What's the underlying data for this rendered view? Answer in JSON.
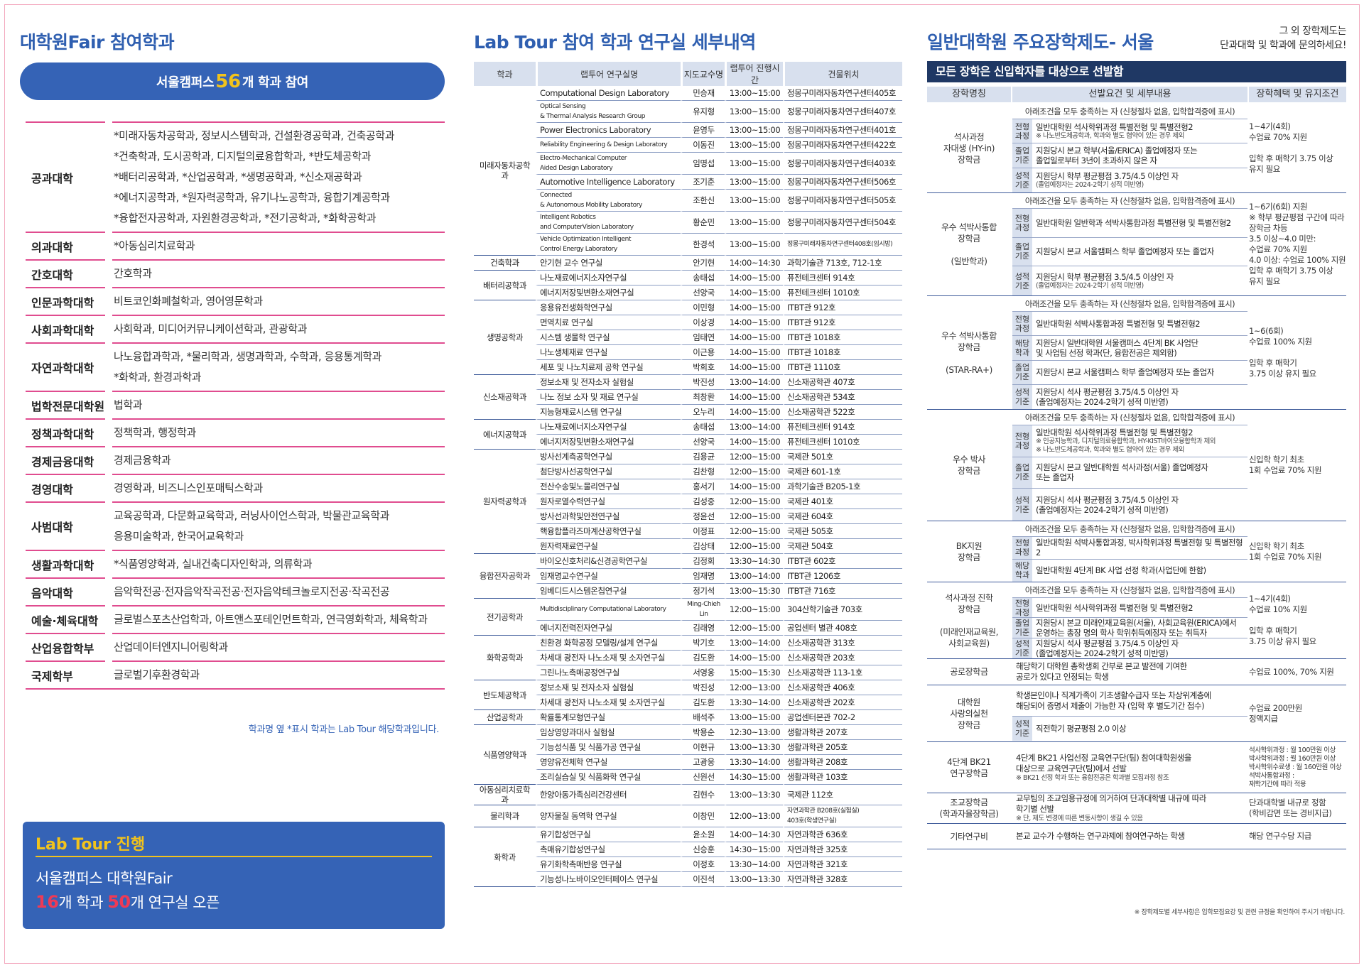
{
  "col1": {
    "title": "대학원Fair 참여학과",
    "pill": {
      "prefix": "서울캠퍼스 ",
      "number": "56",
      "suffix": "개 학과 참여"
    },
    "rows": [
      {
        "college": "공과대학",
        "depts": [
          "*미래자동차공학과, 정보시스템학과, 건설환경공학과, 건축공학과",
          "*건축학과, 도시공학과, 디지털의료융합학과, *반도체공학과",
          "*배터리공학과, *산업공학과, *생명공학과, *신소재공학과",
          "*에너지공학과, *원자력공학과, 유기나노공학과, 융합기계공학과",
          "*융합전자공학과, 자원환경공학과, *전기공학과, *화학공학과"
        ]
      },
      {
        "college": "의과대학",
        "depts": [
          "*아동심리치료학과"
        ]
      },
      {
        "college": "간호대학",
        "depts": [
          "간호학과"
        ]
      },
      {
        "college": "인문과학대학",
        "depts": [
          "비트코인화폐철학과, 영어영문학과"
        ]
      },
      {
        "college": "사회과학대학",
        "depts": [
          "사회학과, 미디어커뮤니케이션학과, 관광학과"
        ]
      },
      {
        "college": "자연과학대학",
        "depts": [
          "나노융합과학과, *물리학과, 생명과학과, 수학과, 응용통계학과",
          "*화학과, 환경과학과"
        ]
      },
      {
        "college": "법학전문대학원",
        "depts": [
          "법학과"
        ]
      },
      {
        "college": "정책과학대학",
        "depts": [
          "정책학과, 행정학과"
        ]
      },
      {
        "college": "경제금융대학",
        "depts": [
          "경제금융학과"
        ]
      },
      {
        "college": "경영대학",
        "depts": [
          "경영학과, 비즈니스인포매틱스학과"
        ]
      },
      {
        "college": "사범대학",
        "depts": [
          "교육공학과, 다문화교육학과, 러닝사이언스학과, 박물관교육학과",
          "응용미술학과, 한국어교육학과"
        ]
      },
      {
        "college": "생활과학대학",
        "depts": [
          "*식품영양학과, 실내건축디자인학과, 의류학과"
        ]
      },
      {
        "college": "음악대학",
        "depts": [
          "음악학전공·전자음악작곡전공·전자음악테크놀로지전공·작곡전공"
        ]
      },
      {
        "college": "예술·체육대학",
        "depts": [
          "글로벌스포츠산업학과, 아트앤스포테인먼트학과, 연극영화학과, 체육학과"
        ]
      },
      {
        "college": "산업융합학부",
        "depts": [
          "산업데이터엔지니어링학과"
        ]
      },
      {
        "college": "국제학부",
        "depts": [
          "글로벌기후환경학과"
        ]
      }
    ],
    "note": "학과명 옆 *표시 학과는 Lab Tour 해당학과입니다.",
    "labtour": {
      "title": "Lab Tour 진행",
      "line1": "서울캠퍼스 대학원Fair",
      "n1": "16",
      "t1": "개 학과 ",
      "n2": "50",
      "t2": "개 연구실 오픈"
    }
  },
  "col2": {
    "title": "Lab Tour 참여  학과 연구실 세부내역",
    "headers": [
      "학과",
      "랩투어 연구실명",
      "지도교수명",
      "랩투어 진행시간",
      "건물위치"
    ],
    "groups": [
      {
        "dept": "미래자동차공학과",
        "rows": [
          [
            "Computational Design Laboratory",
            "민승재",
            "13:00~15:00",
            "정몽구미래자동차연구센터405호"
          ],
          [
            "Optical Sensing\n& Thermal Analysis Research Group",
            "유지형",
            "13:00~15:00",
            "정몽구미래자동차연구센터407호"
          ],
          [
            "Power Electronics Laboratory",
            "윤영두",
            "13:00~15:00",
            "정몽구미래자동차연구센터401호"
          ],
          [
            "Reliability Engineering & Design Laboratory",
            "이동진",
            "13:00~15:00",
            "정몽구미래자동차연구센터422호"
          ],
          [
            "Electro-Mechanical Computer\nAided Design Laboratory",
            "임명섭",
            "13:00~15:00",
            "정몽구미래자동차연구센터403호"
          ],
          [
            "Automotive Intelligence Laboratory",
            "조기춘",
            "13:00~15:00",
            "정몽구미래자동차연구센터506호"
          ],
          [
            "Connected\n& Autonomous Mobility Laboratory",
            "조한신",
            "13:00~15:00",
            "정몽구미래자동차연구센터505호"
          ],
          [
            "Intelligent Robotics\nand ComputerVision Laboratory",
            "황순민",
            "13:00~15:00",
            "정몽구미래자동차연구센터504호"
          ],
          [
            "Vehicle Optimization Intelligent\nControl Energy Laboratory",
            "한경석",
            "13:00~15:00",
            "정몽구미래자동차연구센터408호(임시방)"
          ]
        ]
      },
      {
        "dept": "건축학과",
        "rows": [
          [
            "안기현 교수 연구실",
            "안기현",
            "14:00~14:30",
            "과학기술관 713호, 712-1호"
          ]
        ]
      },
      {
        "dept": "배터리공학과",
        "rows": [
          [
            "나노재료에너지소자연구실",
            "송태섭",
            "14:00~15:00",
            "퓨전테크센터 914호"
          ],
          [
            "에너지저장및변환소재연구실",
            "선양국",
            "14:00~15:00",
            "퓨전테크센터 1010호"
          ]
        ]
      },
      {
        "dept": "생명공학과",
        "rows": [
          [
            "응용유전생화학연구실",
            "이민형",
            "14:00~15:00",
            "ITBT관 912호"
          ],
          [
            "면역치료 연구실",
            "이상경",
            "14:00~15:00",
            "ITBT관 912호"
          ],
          [
            "시스템 생물학 연구실",
            "임태연",
            "14:00~15:00",
            "ITBT관 1018호"
          ],
          [
            "나노생체재료 연구실",
            "이근용",
            "14:00~15:00",
            "ITBT관 1018호"
          ],
          [
            "세포 및 나노치료제 공학 연구실",
            "박희호",
            "14:00~15:00",
            "ITBT관 1110호"
          ]
        ]
      },
      {
        "dept": "신소재공학과",
        "rows": [
          [
            "정보소재 및 전자소자 실험실",
            "박진성",
            "13:00~14:00",
            "신소재공학관 407호"
          ],
          [
            "나노 정보 소자 및 재료 연구실",
            "최창환",
            "14:00~15:00",
            "신소재공학관 534호"
          ],
          [
            "지능형재료시스템 연구실",
            "오누리",
            "14:00~15:00",
            "신소재공학관 522호"
          ]
        ]
      },
      {
        "dept": "에너지공학과",
        "rows": [
          [
            "나노재료에너지소자연구실",
            "송태섭",
            "13:00~14:00",
            "퓨전테크센터 914호"
          ],
          [
            "에너지저장및변환소재연구실",
            "선양국",
            "14:00~15:00",
            "퓨전테크센터 1010호"
          ]
        ]
      },
      {
        "dept": "원자력공학과",
        "rows": [
          [
            "방사선계측공학연구실",
            "김용균",
            "12:00~15:00",
            "국제관 501호"
          ],
          [
            "첨단방사선공학연구실",
            "김찬형",
            "12:00~15:00",
            "국제관 601-1호"
          ],
          [
            "전산수송및노물리연구실",
            "홍서기",
            "14:00~15:00",
            "과학기술관 B205-1호"
          ],
          [
            "원자로열수력연구실",
            "김성중",
            "12:00~15:00",
            "국제관 401호"
          ],
          [
            "방사선과학및안전연구실",
            "정윤선",
            "12:00~15:00",
            "국제관 604호"
          ],
          [
            "핵융합플라즈마계산공학연구실",
            "이정표",
            "12:00~15:00",
            "국제관 505호"
          ],
          [
            "원자력재료연구실",
            "김상태",
            "12:00~15:00",
            "국제관 504호"
          ]
        ]
      },
      {
        "dept": "융합전자공학과",
        "rows": [
          [
            "바이오신호처리&신경공학연구실",
            "김정회",
            "13:30~14:30",
            "ITBT관 602호"
          ],
          [
            "임재명교수연구실",
            "임재명",
            "13:00~14:00",
            "ITBT관 1206호"
          ],
          [
            "임베디드시스템온칩연구실",
            "정기석",
            "13:00~15:30",
            "ITBT관 716호"
          ]
        ]
      },
      {
        "dept": "전기공학과",
        "rows": [
          [
            "Multidisciplinary Computational Laboratory",
            "Ming-Chieh\nLin",
            "12:00~15:00",
            "304산학기술관 703호"
          ],
          [
            "에너지전력전자연구실",
            "김래영",
            "12:00~15:00",
            "공업센터 별관 408호"
          ]
        ]
      },
      {
        "dept": "화학공학과",
        "rows": [
          [
            "친환경 화학공정 모델링/설계 연구실",
            "박기호",
            "13:00~14:00",
            "신소재공학관 313호"
          ],
          [
            "차세대 광전자 나노소재 및 소자연구실",
            "김도환",
            "14:00~15:00",
            "신소재공학관 203호"
          ],
          [
            "그린나노촉매공정연구실",
            "서영웅",
            "15:00~15:30",
            "신소재공학관 113-1호"
          ]
        ]
      },
      {
        "dept": "반도체공학과",
        "rows": [
          [
            "정보소재 및 전자소자 실험실",
            "박진성",
            "12:00~13:00",
            "신소재공학관 406호"
          ],
          [
            "차세대 광전자 나노소재 및 소자연구실",
            "김도환",
            "13:30~14:00",
            "신소재공학관 202호"
          ]
        ]
      },
      {
        "dept": "산업공학과",
        "rows": [
          [
            "확률통계모형연구실",
            "배석주",
            "13:00~15:00",
            "공업센터본관 702-2"
          ]
        ]
      },
      {
        "dept": "식품영양학과",
        "rows": [
          [
            "임상영양과대사 실험실",
            "박용순",
            "12:30~13:00",
            "생활과학관 207호"
          ],
          [
            "기능성식품 및 식품가공 연구실",
            "이현규",
            "13:00~13:30",
            "생활과학관 205호"
          ],
          [
            "영양유전체학 연구실",
            "고광웅",
            "13:30~14:00",
            "생활과학관 208호"
          ],
          [
            "조리실습실 및 식품화학 연구실",
            "신원선",
            "14:30~15:00",
            "생활과학관 103호"
          ]
        ]
      },
      {
        "dept": "아동심리치료학과",
        "rows": [
          [
            "한양아동가족심리건강센터",
            "김현수",
            "13:00~13:30",
            "국제관 112호"
          ]
        ]
      },
      {
        "dept": "물리학과",
        "rows": [
          [
            "양자물질 동역학 연구실",
            "이창민",
            "12:00~13:00",
            "자연과학관 B208호(실험실)\n403호(학생연구실)"
          ]
        ]
      },
      {
        "dept": "화학과",
        "rows": [
          [
            "유기합성연구실",
            "윤소원",
            "14:00~14:30",
            "자연과학관 636호"
          ],
          [
            "촉매유기합성연구실",
            "신승훈",
            "14:30~15:00",
            "자연과학관 325호"
          ],
          [
            "유기화학촉매반응 연구실",
            "이정호",
            "13:30~14:00",
            "자연과학관 321호"
          ],
          [
            "기능성나노바이오인터페이스 연구실",
            "이진석",
            "13:00~13:30",
            "자연과학관 328호"
          ]
        ]
      }
    ]
  },
  "col3": {
    "title": "일반대학원 주요장학제도- 서울",
    "side_note": [
      "그 외 장학제도는",
      "단과대학 및 학과에 문의하세요!"
    ],
    "banner": "모든 장학은 신입학자를 대상으로 선발함",
    "headers": [
      "장학명칭",
      "선발요건 및 세부내용",
      "장학혜택 및 유지조건"
    ],
    "blocks": [
      {
        "name": "석사과정\n자대생 (HY-in)\n장학금",
        "cond": "아래조건을 모두 충족하는 자 (신청절차 없음, 입학합격증에 표시)",
        "reqs": [
          {
            "k": "전형\n과정",
            "v": "일반대학원 석사학위과정 특별전형 및 특별전형2",
            "s": "※ 나노반도체공학과, 학과와 별도 협약이 있는 경우 제외"
          },
          {
            "k": "졸업\n기준",
            "v": "지원당시 본교 학부(서울/ERICA) 졸업예정자 또는\n졸업일로부터 3년이 초과하지 않은 자",
            "s": ""
          },
          {
            "k": "성적\n기준",
            "v": "지원당시 학부 평균평점 3.75/4.5 이상인 자",
            "s": "(졸업예정자는 2024-2학기 성적 미반영)"
          }
        ],
        "benefit": "1~4기(4회)\n수업료 70% 지원\n\n입학 후 매학기 3.75 이상\n유지 필요"
      },
      {
        "name": "우수 석박사통합\n장학금\n\n(일반학과)",
        "cond": "아래조건을 모두 충족하는 자 (신청절차 없음, 입학합격증에 표시)",
        "reqs": [
          {
            "k": "전형\n과정",
            "v": "일반대학원 일반학과 석박사통합과정 특별전형 및 특별전형2",
            "s": ""
          },
          {
            "k": "졸업\n기준",
            "v": "지원당시 본교 서울캠퍼스 학부 졸업예정자 또는 졸업자",
            "s": ""
          },
          {
            "k": "성적\n기준",
            "v": "지원당시 학부 평균평점 3.5/4.5 이상인 자",
            "s": "(졸업예정자는 2024-2학기 성적 미반영)"
          }
        ],
        "benefit": "1~6기(6회) 지원\n※ 학부 평균평점 구간에 따라\n  장학금 차등\n3.5 이상~4.0 미만:\n수업료 70% 지원\n4.0 이상: 수업료 100% 지원\n입학 후 매학기 3.75 이상\n유지 필요"
      },
      {
        "name": "우수 석박사통합\n장학금\n\n(STAR-RA+)",
        "cond": "아래조건을 모두 충족하는 자 (신청절차 없음, 입학합격증에 표시)",
        "reqs": [
          {
            "k": "전형\n과정",
            "v": "일반대학원 석박사통합과정 특별전형 및 특별전형2",
            "s": ""
          },
          {
            "k": "해당\n학과",
            "v": "지원당시 일반대학원 서울캠퍼스 4단계 BK 사업단\n및 사업팀 선정 학과(단, 융합전공은 제외함)",
            "s": ""
          },
          {
            "k": "졸업\n기준",
            "v": "지원당시 본교 서울캠퍼스 학부 졸업예정자 또는 졸업자",
            "s": ""
          },
          {
            "k": "성적\n기준",
            "v": "지원당시 석사 평균평점 3.75/4.5 이상인 자\n(졸업예정자는 2024-2학기 성적 미반영)",
            "s": ""
          }
        ],
        "benefit": "1~6(6회)\n수업료 100% 지원\n\n입학 후 매학기\n3.75 이상 유지 필요"
      },
      {
        "name": "우수 박사\n장학금",
        "cond": "아래조건을 모두 충족하는 자 (신청절차 없음, 입학합격증에 표시)",
        "reqs": [
          {
            "k": "전형\n과정",
            "v": "일반대학원 석사학위과정 특별전형 및 특별전형2",
            "s": "※ 인공지능학과, 디지털의료융합학과, HY-KIST바이오융합학과 제외\n※ 나노반도체공학과, 학과와 별도 협약이 있는 경우 제외"
          },
          {
            "k": "졸업\n기준",
            "v": "지원당시 본교 일반대학원 석사과정(서울) 졸업예정자\n또는 졸업자",
            "s": ""
          },
          {
            "k": "성적\n기준",
            "v": "지원당시 석사 평균평점 3.75/4.5 이상인 자\n(졸업예정자는 2024-2학기 성적 미반영)",
            "s": ""
          }
        ],
        "benefit": "신입학 학기 최초\n1회 수업료 70% 지원"
      },
      {
        "name": "BK지원\n장학금",
        "cond": "아래조건을 모두 충족하는 자 (신청절차 없음, 입학합격증에 표시)",
        "reqs": [
          {
            "k": "전형\n과정",
            "v": "일반대학원 석박사통합과정, 박사학위과정 특별전형 및 특별전형2",
            "s": ""
          },
          {
            "k": "해당\n학과",
            "v": "일반대학원 4단계 BK 사업 선정 학과(사업단에 한함)",
            "s": ""
          }
        ],
        "benefit": "신입학 학기 최초\n1회 수업료 70% 지원"
      },
      {
        "name": "석사과정 진학\n장학금\n\n(미래인재교육원,\n사회교육원)",
        "cond": "아래조건을 모두 충족하는 자 (신청절차 없음, 입학합격증에 표시)",
        "reqs": [
          {
            "k": "전형\n과정",
            "v": "일반대학원 석사학위과정 특별전형 및 특별전형2",
            "s": ""
          },
          {
            "k": "졸업\n기준",
            "v": "지원당시 본교 미래인재교육원(서울), 사회교육원(ERICA)에서\n운영하는 총장 명의 학사 학위취득예정자 또는 취득자",
            "s": ""
          },
          {
            "k": "성적\n기준",
            "v": "지원당시 석사 평균평점 3.75/4.5 이상인 자\n(졸업예정자는 2024-2학기 성적 미반영)",
            "s": ""
          }
        ],
        "benefit": "1~4기(4회)\n수업료 10% 지원\n\n입학 후 매학기\n3.75 이상 유지 필요"
      }
    ],
    "plain": [
      {
        "name": "공로장학금",
        "v": "해당학기 대학원 총학생회 간부로 본교 발전에 기여한\n공로가 있다고 인정되는 학생",
        "s": "",
        "benefit": "수업료 100%, 70% 지원"
      },
      {
        "name": "대학원\n사랑의실천\n장학금",
        "v": "학생본인이나 직계가족이 기초생활수급자 또는 차상위계층에\n해당되어 증명서 제출이 가능한 자 (입학 후 별도기간 접수)",
        "k2": "성적\n기준",
        "v2": "직전학기 평균평점 2.0 이상",
        "benefit": "수업료 200만원\n정액지급"
      },
      {
        "name": "4단계 BK21\n연구장학금",
        "v": "4단계 BK21 사업선정 교육연구단(팀) 참여대학원생을\n대상으로 교육연구단(팀)에서 선발",
        "s": "※ BK21 선정 학과 또는 융합전공은 학과별 모집과정 참조",
        "benefit": "석사학위과정 : 월 100만원 이상\n박사학위과정 : 월 160만원 이상\n박사학위수료생 : 월 160만원 이상\n석박사통합과정 :\n재학기간에 따라 적용"
      },
      {
        "name": "조교장학금\n(학과자율장학금)",
        "v": "교무팀의 조교임용규정에 의거하여 단과대학별 내규에 따라\n학기별 선발",
        "s": "※ 단, 제도 변경에 따른 변동사항이 생길 수 있음",
        "benefit": "단과대학별 내규로 정함\n(학비감면 또는 경비지급)"
      },
      {
        "name": "기타연구비",
        "v": "본교 교수가 수행하는 연구과제에 참여연구하는 학생",
        "s": "",
        "benefit": "해당 연구수당 지급"
      }
    ],
    "footnote": "※ 장학제도별 세부사항은 입학모집요강 및 관련 규정을 확인하여 주시기 바랍니다."
  }
}
